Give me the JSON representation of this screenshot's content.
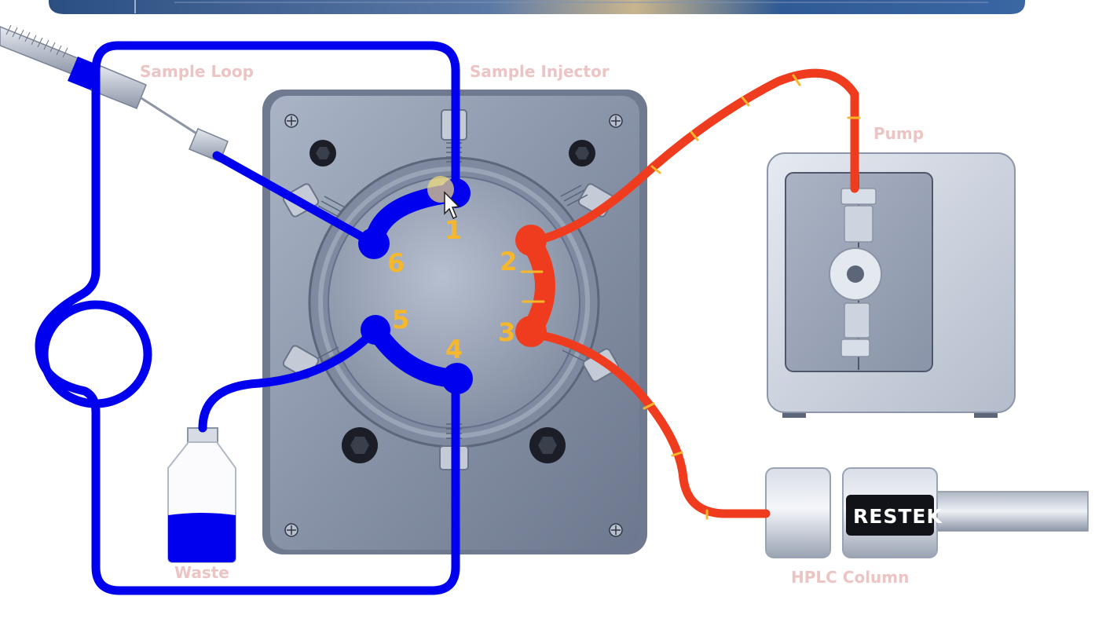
{
  "labels": {
    "sample_loop": "Sample Loop",
    "sample_injector": "Sample Injector",
    "pump": "Pump",
    "waste": "Waste",
    "hplc_column": "HPLC Column"
  },
  "ports": [
    "1",
    "2",
    "3",
    "4",
    "5",
    "6"
  ],
  "column_brand": "RESTEK",
  "colors": {
    "load_flow": "#0000ee",
    "mobile_phase_flow": "#f03c1e",
    "port_numbers": "#f6b82a",
    "labels": "#edc4c4"
  }
}
